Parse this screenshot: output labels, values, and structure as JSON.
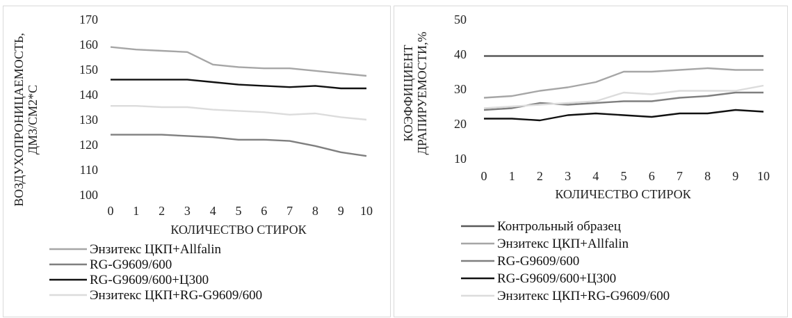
{
  "colors": {
    "control": "#595959",
    "enzitex_allfalin": "#a6a6a6",
    "rg": "#7f7f7f",
    "rg_c300": "#111111",
    "enzitex_rg": "#dcdcdc"
  },
  "chart_data": [
    {
      "type": "line",
      "title": "",
      "xlabel": "КОЛИЧЕСТВО СТИРОК",
      "ylabel_lines": [
        "ВОЗДУХОПРОНИЦАЕМОСТЬ,",
        "ДМ3/СМ2*С"
      ],
      "x": [
        0,
        1,
        2,
        3,
        4,
        5,
        6,
        7,
        8,
        9,
        10
      ],
      "x_tick_labels": [
        "0",
        "1",
        "2",
        "3",
        "4",
        "5",
        "6",
        "7",
        "8",
        "9",
        "10"
      ],
      "ylim": [
        100,
        170
      ],
      "y_ticks": [
        100,
        110,
        120,
        130,
        140,
        150,
        160,
        170
      ],
      "y_tick_labels": [
        "100",
        "110",
        "120",
        "130",
        "140",
        "150",
        "160",
        "170"
      ],
      "grid": false,
      "legend_position": "bottom",
      "series": [
        {
          "name": "Энзитекс ЦКП+Allfalin",
          "color_key": "enzitex_allfalin",
          "values": [
            159,
            158,
            157.5,
            157,
            152,
            151,
            150.5,
            150.5,
            149.5,
            148.5,
            147.5
          ]
        },
        {
          "name": "RG-G9609/600",
          "color_key": "rg",
          "values": [
            124,
            124,
            124,
            123.5,
            123,
            122,
            122,
            121.5,
            119.5,
            117,
            115.5
          ]
        },
        {
          "name": "RG-G9609/600+Ц300",
          "color_key": "rg_c300",
          "values": [
            146,
            146,
            146,
            146,
            145,
            144,
            143.5,
            143,
            143.5,
            142.5,
            142.5
          ]
        },
        {
          "name": "Энзитекс ЦКП+RG-G9609/600",
          "color_key": "enzitex_rg",
          "values": [
            135.5,
            135.5,
            135,
            135,
            134,
            133.5,
            133,
            132,
            132.5,
            131,
            130
          ]
        }
      ]
    },
    {
      "type": "line",
      "title": "",
      "xlabel": "КОЛИЧЕСТВО СТИРОК",
      "ylabel_lines": [
        "КОЭФФИЦИЕНТ",
        "ДРАПИРУЕМОСТИ,%"
      ],
      "x": [
        0,
        1,
        2,
        3,
        4,
        5,
        6,
        7,
        8,
        9,
        10
      ],
      "x_tick_labels": [
        "0",
        "1",
        "2",
        "3",
        "4",
        "5",
        "6",
        "7",
        "8",
        "9",
        "10"
      ],
      "ylim": [
        10,
        50
      ],
      "y_ticks": [
        10,
        20,
        30,
        40,
        50
      ],
      "y_tick_labels": [
        "10",
        "20",
        "30",
        "40",
        "50"
      ],
      "grid": false,
      "legend_position": "bottom",
      "series": [
        {
          "name": "Контрольный образец",
          "color_key": "control",
          "values": [
            39.5,
            39.5,
            39.5,
            39.5,
            39.5,
            39.5,
            39.5,
            39.5,
            39.5,
            39.5,
            39.5
          ]
        },
        {
          "name": "Энзитекс ЦКП+Allfalin",
          "color_key": "enzitex_allfalin",
          "values": [
            27.5,
            28,
            29.5,
            30.5,
            32,
            35,
            35,
            35.5,
            36,
            35.5,
            35.5
          ]
        },
        {
          "name": "RG-G9609/600",
          "color_key": "rg",
          "values": [
            24,
            24.5,
            26,
            25.5,
            26,
            26.5,
            26.5,
            27.5,
            28,
            29,
            29
          ]
        },
        {
          "name": "RG-G9609/600+Ц300",
          "color_key": "rg_c300",
          "values": [
            21.5,
            21.5,
            21,
            22.5,
            23,
            22.5,
            22,
            23,
            23,
            24,
            23.5
          ]
        },
        {
          "name": "Энзитекс ЦКП+RG-G9609/600",
          "color_key": "enzitex_rg",
          "values": [
            24.5,
            25,
            25.5,
            26,
            26.5,
            29,
            28.5,
            29.5,
            29.5,
            29.5,
            31
          ]
        }
      ]
    }
  ]
}
